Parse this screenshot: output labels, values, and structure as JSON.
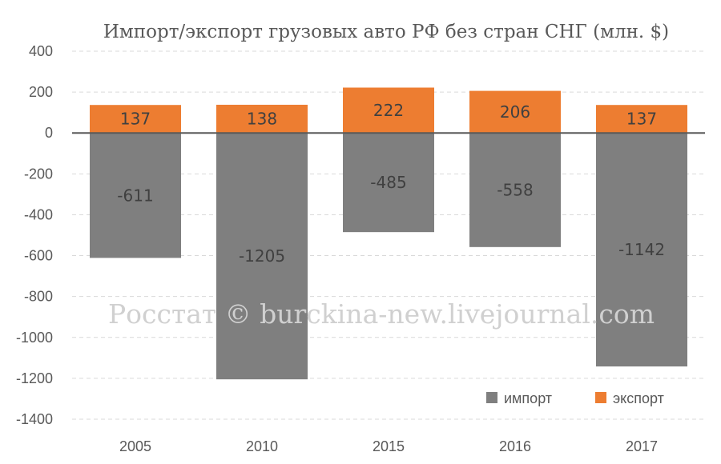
{
  "chart_data": {
    "type": "bar",
    "stacked": true,
    "title": "Импорт/экспорт грузовых авто РФ без стран СНГ (млн. $)",
    "categories": [
      "2005",
      "2010",
      "2015",
      "2016",
      "2017"
    ],
    "series": [
      {
        "name": "импорт",
        "color": "#7f7f7f",
        "values": [
          -611,
          -1205,
          -485,
          -558,
          -1142
        ]
      },
      {
        "name": "экспорт",
        "color": "#ed7d31",
        "values": [
          137,
          138,
          222,
          206,
          137
        ]
      }
    ],
    "ylim": [
      -1400,
      400
    ],
    "yticks": [
      400,
      200,
      0,
      -200,
      -400,
      -600,
      -800,
      -1000,
      -1200,
      -1400
    ],
    "ytick_labels": [
      "400",
      "200",
      "0",
      "-200",
      "-400",
      "-600",
      "-800",
      "-1000",
      "-1200",
      "-1400"
    ],
    "grid": true,
    "legend_position": "bottom-right"
  },
  "watermark": "Росстат © burckina-new.livejournal.com"
}
